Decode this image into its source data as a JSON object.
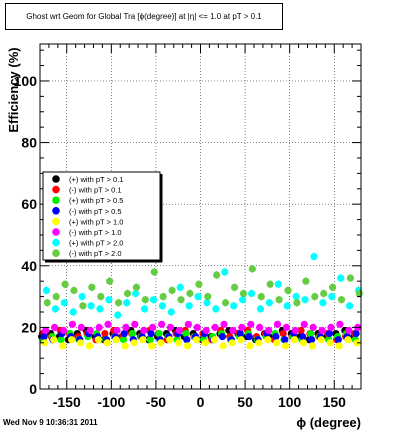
{
  "header": {
    "title": "Ghost wrt Geom for Global Tra [ϕ(degree)] at |η| <= 1.0 at pT > 0.1",
    "timestamp": "Wed Nov  9 10:36:31 2011"
  },
  "colors": {
    "black": "#000000",
    "red": "#ff0000",
    "green": "#00ee00",
    "blue": "#0000ff",
    "yellow": "#ffff00",
    "magenta": "#ff00ff",
    "cyan": "#00ffff",
    "olive": "#66cc44"
  },
  "chart_data": {
    "type": "scatter",
    "title": "Ghost wrt Geom for Global Tra [ϕ(degree)] at |η| <= 1.0 at pT > 0.1",
    "xlabel": "ϕ (degree)",
    "ylabel": "Efficiency (%)",
    "xlim": [
      -180,
      180
    ],
    "ylim": [
      0,
      112
    ],
    "xticks": [
      -150,
      -100,
      -50,
      0,
      50,
      100,
      150
    ],
    "yticks": [
      0,
      20,
      40,
      60,
      80,
      100
    ],
    "grid": true,
    "legend_position": "middle-left",
    "series": [
      {
        "name": "(+) with pT > 0.1",
        "color": "#000000",
        "values": [
          17,
          18,
          17,
          16,
          18,
          19,
          17,
          16,
          18,
          17,
          19,
          18,
          16,
          17,
          18,
          19,
          17,
          18,
          16,
          17,
          18,
          19,
          18,
          17,
          16,
          18,
          17,
          19,
          18,
          17,
          16,
          18,
          17,
          18,
          19,
          17
        ]
      },
      {
        "name": "(-) with pT > 0.1",
        "color": "#ff0000",
        "values": [
          18,
          17,
          19,
          18,
          17,
          18,
          16,
          18,
          19,
          17,
          18,
          17,
          19,
          18,
          16,
          18,
          19,
          17,
          18,
          16,
          19,
          17,
          18,
          19,
          17,
          18,
          16,
          18,
          17,
          19,
          18,
          17,
          18,
          16,
          17,
          18
        ]
      },
      {
        "name": "(+) with pT > 0.5",
        "color": "#00ee00",
        "values": [
          16,
          17,
          16,
          18,
          16,
          17,
          18,
          16,
          17,
          16,
          18,
          17,
          16,
          18,
          17,
          16,
          18,
          17,
          16,
          17,
          18,
          16,
          17,
          18,
          16,
          17,
          18,
          16,
          17,
          16,
          18,
          17,
          16,
          17,
          18,
          16
        ]
      },
      {
        "name": "(-) with pT > 0.5",
        "color": "#0000ff",
        "values": [
          17,
          16,
          18,
          17,
          16,
          18,
          17,
          16,
          17,
          18,
          16,
          17,
          18,
          16,
          17,
          18,
          16,
          17,
          18,
          16,
          17,
          16,
          18,
          17,
          16,
          18,
          17,
          16,
          18,
          17,
          16,
          17,
          18,
          16,
          17,
          18
        ]
      },
      {
        "name": "(+) with pT > 1.0",
        "color": "#ffff00",
        "values": [
          15,
          16,
          14,
          16,
          15,
          14,
          16,
          15,
          16,
          14,
          15,
          16,
          14,
          15,
          16,
          15,
          14,
          16,
          15,
          16,
          14,
          15,
          16,
          14,
          15,
          16,
          15,
          14,
          16,
          15,
          14,
          16,
          15,
          14,
          16,
          15
        ]
      },
      {
        "name": "(-) with pT > 1.0",
        "color": "#ff00ff",
        "values": [
          19,
          20,
          19,
          21,
          20,
          19,
          20,
          21,
          19,
          20,
          21,
          19,
          20,
          21,
          20,
          19,
          21,
          20,
          19,
          20,
          21,
          19,
          20,
          21,
          20,
          19,
          21,
          20,
          19,
          21,
          20,
          19,
          20,
          21,
          19,
          20
        ]
      },
      {
        "name": "(+) with pT > 2.0",
        "color": "#00ffff",
        "values": [
          32,
          26,
          28,
          25,
          30,
          27,
          26,
          29,
          24,
          28,
          31,
          26,
          29,
          27,
          25,
          33,
          27,
          30,
          28,
          26,
          38,
          27,
          29,
          31,
          26,
          28,
          34,
          27,
          30,
          29,
          43,
          28,
          30,
          36,
          27,
          32
        ]
      },
      {
        "name": "(-) with pT > 2.0",
        "color": "#66cc44",
        "values": [
          28,
          30,
          34,
          32,
          27,
          33,
          30,
          35,
          28,
          31,
          33,
          29,
          38,
          30,
          32,
          29,
          31,
          34,
          30,
          37,
          28,
          33,
          31,
          39,
          30,
          34,
          29,
          32,
          28,
          35,
          30,
          31,
          33,
          29,
          36,
          31
        ]
      }
    ]
  }
}
